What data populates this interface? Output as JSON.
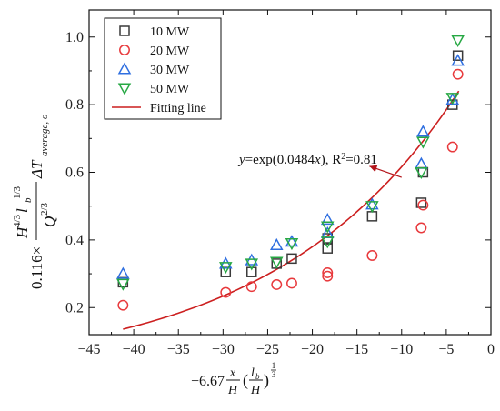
{
  "chart_data": {
    "type": "scatter",
    "xlim": [
      -45,
      0
    ],
    "ylim": [
      0.12,
      1.08
    ],
    "x_ticks": [
      -45,
      -40,
      -35,
      -30,
      -25,
      -20,
      -15,
      -10,
      -5,
      0
    ],
    "y_ticks": [
      0.2,
      0.4,
      0.6,
      0.8,
      1.0
    ],
    "x_tick_labels": [
      "−45",
      "−40",
      "−35",
      "−30",
      "−25",
      "−20",
      "−15",
      "−10",
      "−5",
      "0"
    ],
    "y_tick_labels": [
      "0.2",
      "0.4",
      "0.6",
      "0.8",
      "1.0"
    ],
    "grid": false,
    "legend_position": "top-left",
    "xlabel": {
      "coef": "−6.67",
      "frac1_num": "x",
      "frac1_den": "H",
      "paren_open": "(",
      "frac2_num": "l",
      "frac2_num_sub": "b",
      "frac2_den": "H",
      "paren_close": ")",
      "exp_num": "1",
      "exp_den": "3"
    },
    "ylabel": {
      "coef": "0.116×",
      "numerator": "H",
      "num_sup1": "4/3",
      "num_l": " l",
      "num_l_sub": "b",
      "num_sup2": "1/3",
      "denominator": "Q",
      "den_sup": "2/3",
      "delta": "ΔT",
      "delta_sub": "average, o"
    },
    "series": [
      {
        "name": "10 MW",
        "marker": "square",
        "color": "#3a3a3a",
        "points": [
          [
            -41.2,
            0.275
          ],
          [
            -29.7,
            0.305
          ],
          [
            -26.8,
            0.305
          ],
          [
            -24.0,
            0.33
          ],
          [
            -22.3,
            0.345
          ],
          [
            -18.3,
            0.375
          ],
          [
            -18.3,
            0.405
          ],
          [
            -13.3,
            0.47
          ],
          [
            -7.8,
            0.51
          ],
          [
            -7.6,
            0.6
          ],
          [
            -4.3,
            0.8
          ],
          [
            -3.7,
            0.945
          ]
        ]
      },
      {
        "name": "20 MW",
        "marker": "circle",
        "color": "#e8393c",
        "points": [
          [
            -41.2,
            0.207
          ],
          [
            -29.7,
            0.245
          ],
          [
            -26.8,
            0.262
          ],
          [
            -24.0,
            0.268
          ],
          [
            -22.3,
            0.272
          ],
          [
            -18.3,
            0.293
          ],
          [
            -18.3,
            0.303
          ],
          [
            -13.3,
            0.354
          ],
          [
            -7.8,
            0.436
          ],
          [
            -7.6,
            0.503
          ],
          [
            -4.3,
            0.675
          ],
          [
            -3.7,
            0.89
          ]
        ]
      },
      {
        "name": "30 MW",
        "marker": "triangle-up",
        "color": "#2f6fe0",
        "points": [
          [
            -41.2,
            0.3
          ],
          [
            -29.7,
            0.33
          ],
          [
            -26.8,
            0.34
          ],
          [
            -24.0,
            0.385
          ],
          [
            -22.3,
            0.395
          ],
          [
            -18.3,
            0.42
          ],
          [
            -18.3,
            0.46
          ],
          [
            -13.3,
            0.505
          ],
          [
            -7.8,
            0.625
          ],
          [
            -7.6,
            0.72
          ],
          [
            -4.3,
            0.815
          ],
          [
            -3.7,
            0.93
          ]
        ]
      },
      {
        "name": "50 MW",
        "marker": "triangle-down",
        "color": "#27a844",
        "points": [
          [
            -41.2,
            0.27
          ],
          [
            -29.7,
            0.32
          ],
          [
            -26.8,
            0.33
          ],
          [
            -24.0,
            0.335
          ],
          [
            -22.3,
            0.39
          ],
          [
            -18.3,
            0.395
          ],
          [
            -18.3,
            0.44
          ],
          [
            -13.3,
            0.5
          ],
          [
            -7.8,
            0.6
          ],
          [
            -7.6,
            0.69
          ],
          [
            -4.3,
            0.82
          ],
          [
            -3.7,
            0.99
          ]
        ]
      }
    ],
    "fit": {
      "name": "Fitting line",
      "color": "#cc1f1f",
      "a": 1.0,
      "b": 0.0484,
      "x_range": [
        -41.2,
        -3.6
      ]
    },
    "annotation": {
      "y_var": "y",
      "eq_mid": "=exp(0.0484",
      "x_var": "x",
      "eq_end": "), R",
      "sup": "2",
      "r_value": "=0.81",
      "text_at": [
        -28.2,
        0.625
      ],
      "arrow_from": [
        -13.6,
        0.618
      ],
      "arrow_to": [
        -10.0,
        0.585
      ]
    }
  }
}
